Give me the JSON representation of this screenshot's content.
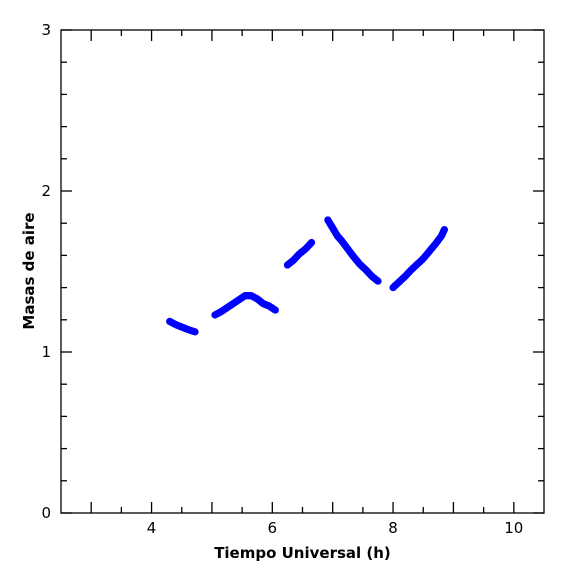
{
  "chart_data": {
    "type": "scatter",
    "xlabel": "Tiempo Universal (h)",
    "ylabel": "Masas de aire",
    "xlim": [
      2.5,
      10.5
    ],
    "ylim": [
      0,
      3
    ],
    "xticks": [
      4,
      6,
      8,
      10
    ],
    "yticks": [
      0,
      1,
      2,
      3
    ],
    "xtick_labels": [
      "4",
      "6",
      "8",
      "10"
    ],
    "ytick_labels": [
      "0",
      "1",
      "2",
      "3"
    ],
    "grid": false,
    "marker_color": "#0000ff",
    "series": [
      {
        "points": [
          [
            4.3,
            1.19
          ],
          [
            4.4,
            1.17
          ],
          [
            4.5,
            1.155
          ],
          [
            4.6,
            1.14
          ],
          [
            4.72,
            1.125
          ],
          [
            5.05,
            1.23
          ],
          [
            5.15,
            1.25
          ],
          [
            5.25,
            1.275
          ],
          [
            5.35,
            1.3
          ],
          [
            5.45,
            1.325
          ],
          [
            5.55,
            1.35
          ],
          [
            5.65,
            1.35
          ],
          [
            5.75,
            1.33
          ],
          [
            5.85,
            1.3
          ],
          [
            5.95,
            1.285
          ],
          [
            6.05,
            1.26
          ],
          [
            6.25,
            1.54
          ],
          [
            6.35,
            1.57
          ],
          [
            6.45,
            1.61
          ],
          [
            6.55,
            1.64
          ],
          [
            6.65,
            1.68
          ],
          [
            6.92,
            1.82
          ],
          [
            7.0,
            1.77
          ],
          [
            7.08,
            1.72
          ],
          [
            7.15,
            1.69
          ],
          [
            7.25,
            1.64
          ],
          [
            7.35,
            1.59
          ],
          [
            7.45,
            1.545
          ],
          [
            7.55,
            1.51
          ],
          [
            7.65,
            1.47
          ],
          [
            7.75,
            1.44
          ],
          [
            8.0,
            1.4
          ],
          [
            8.1,
            1.435
          ],
          [
            8.2,
            1.47
          ],
          [
            8.3,
            1.51
          ],
          [
            8.4,
            1.545
          ],
          [
            8.5,
            1.58
          ],
          [
            8.6,
            1.625
          ],
          [
            8.7,
            1.67
          ],
          [
            8.8,
            1.72
          ],
          [
            8.85,
            1.76
          ]
        ]
      }
    ]
  }
}
